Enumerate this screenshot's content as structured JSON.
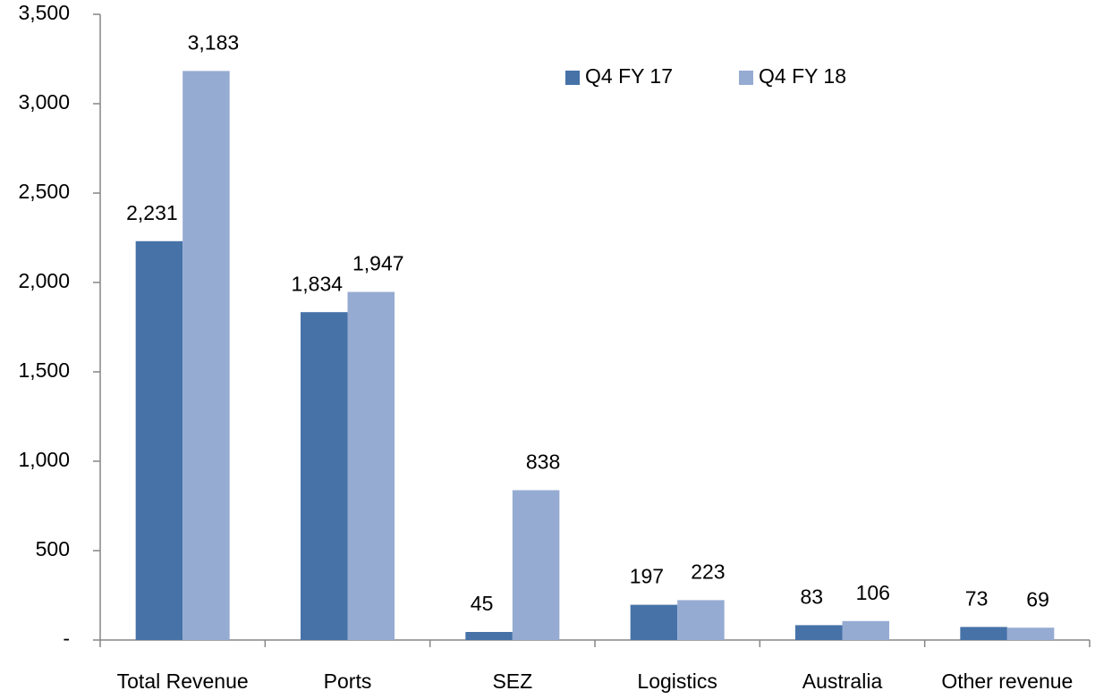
{
  "chart_data": {
    "type": "bar",
    "categories": [
      "Total Revenue",
      "Ports",
      "SEZ",
      "Logistics",
      "Australia",
      "Other revenue"
    ],
    "series": [
      {
        "name": "Q4 FY 17",
        "color": "#4672a8",
        "values": [
          2231,
          1834,
          45,
          197,
          83,
          73
        ],
        "value_labels": [
          "2,231",
          "1,834",
          "45",
          "197",
          "83",
          "73"
        ]
      },
      {
        "name": "Q4 FY 18",
        "color": "#95abd2",
        "values": [
          3183,
          1947,
          838,
          223,
          106,
          69
        ],
        "value_labels": [
          "3,183",
          "1,947",
          "838",
          "223",
          "106",
          "69"
        ]
      }
    ],
    "ylim": [
      0,
      3500
    ],
    "yticks": [
      {
        "value": 0,
        "label": "-"
      },
      500,
      {
        "value": 1000,
        "label": "1,000"
      },
      {
        "value": 1500,
        "label": "1,500"
      },
      {
        "value": 2000,
        "label": "2,000"
      },
      {
        "value": 2500,
        "label": "2,500"
      },
      {
        "value": 3000,
        "label": "3,000"
      },
      {
        "value": 3500,
        "label": "3,500"
      }
    ],
    "legend": "top"
  }
}
